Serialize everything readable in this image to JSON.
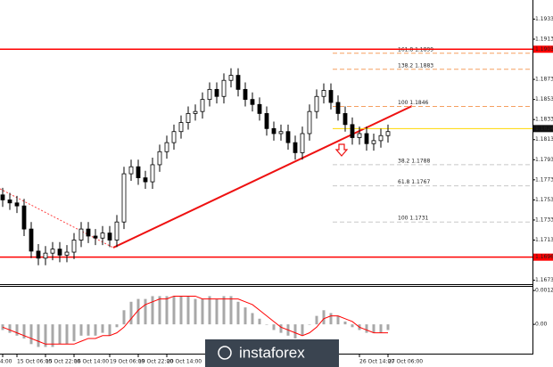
{
  "chart_data": {
    "type": "candlestick",
    "categories": [
      "4:00",
      null,
      "15 Oct 06:00",
      null,
      null,
      null,
      "15 Oct 22:00",
      null,
      null,
      null,
      "16 Oct 14:00",
      null,
      null,
      null,
      null,
      "19 Oct 06:00",
      null,
      null,
      null,
      "19 Oct 22:00",
      null,
      null,
      null,
      "20 Oct 14:00",
      null,
      null,
      null,
      null,
      null,
      null,
      null,
      null,
      null,
      null,
      null,
      null,
      null,
      null,
      null,
      null,
      null,
      null,
      null,
      null,
      null,
      null,
      null,
      null,
      null,
      null,
      "26 Oct 14:00",
      null,
      null,
      null,
      "27 Oct 06:00"
    ],
    "open": [
      1.1758,
      1.1753,
      1.175,
      1.1747,
      1.1724,
      1.1702,
      1.1695,
      1.17,
      1.1704,
      1.1698,
      1.1701,
      1.1713,
      1.1724,
      1.1717,
      1.1715,
      1.172,
      1.1713,
      1.1731,
      1.1779,
      1.1786,
      1.1775,
      1.1771,
      1.1788,
      1.1801,
      1.181,
      1.1821,
      1.183,
      1.1839,
      1.1841,
      1.1853,
      1.1863,
      1.1856,
      1.1872,
      1.1877,
      1.1863,
      1.1853,
      1.1848,
      1.1839,
      1.1824,
      1.1819,
      1.1821,
      1.181,
      1.18,
      1.1819,
      1.1841,
      1.1856,
      1.1862,
      1.185,
      1.1839,
      1.1828,
      1.1815,
      1.1819,
      1.1809,
      1.1812,
      1.1817
    ],
    "high": [
      1.1765,
      1.176,
      1.1757,
      1.1754,
      1.1731,
      1.1709,
      1.1707,
      1.1711,
      1.1711,
      1.1708,
      1.172,
      1.1731,
      1.1731,
      1.1724,
      1.1727,
      1.1727,
      1.1738,
      1.1786,
      1.1793,
      1.1793,
      1.1782,
      1.1795,
      1.1808,
      1.1817,
      1.1828,
      1.1837,
      1.1846,
      1.1848,
      1.186,
      1.187,
      1.187,
      1.1879,
      1.1884,
      1.1884,
      1.187,
      1.186,
      1.1855,
      1.1846,
      1.1831,
      1.1828,
      1.1828,
      1.1817,
      1.1826,
      1.1848,
      1.1863,
      1.1869,
      1.1869,
      1.1857,
      1.1846,
      1.1835,
      1.1826,
      1.1826,
      1.1819,
      1.1824,
      1.1828
    ],
    "low": [
      1.1746,
      1.1743,
      1.174,
      1.1717,
      1.1695,
      1.1688,
      1.1688,
      1.1693,
      1.1691,
      1.1691,
      1.1694,
      1.1706,
      1.171,
      1.1708,
      1.1708,
      1.1706,
      1.1706,
      1.1724,
      1.1772,
      1.1768,
      1.1764,
      1.1764,
      1.1781,
      1.1794,
      1.1803,
      1.1814,
      1.1823,
      1.1832,
      1.1834,
      1.1846,
      1.1849,
      1.1849,
      1.1865,
      1.1856,
      1.1846,
      1.1841,
      1.1832,
      1.1817,
      1.1812,
      1.1812,
      1.1803,
      1.1793,
      1.1793,
      1.1812,
      1.1834,
      1.1849,
      1.1843,
      1.1832,
      1.1821,
      1.1808,
      1.1808,
      1.1802,
      1.1802,
      1.1805,
      1.181
    ],
    "close": [
      1.1753,
      1.175,
      1.1747,
      1.1724,
      1.1702,
      1.1695,
      1.17,
      1.1704,
      1.1698,
      1.1701,
      1.1713,
      1.1724,
      1.1717,
      1.1715,
      1.172,
      1.1713,
      1.1731,
      1.1779,
      1.1786,
      1.1775,
      1.1771,
      1.1788,
      1.1801,
      1.181,
      1.1821,
      1.183,
      1.1839,
      1.1841,
      1.1853,
      1.1863,
      1.1856,
      1.1872,
      1.1877,
      1.1863,
      1.1853,
      1.1848,
      1.1839,
      1.1824,
      1.1819,
      1.1821,
      1.181,
      1.18,
      1.1819,
      1.1841,
      1.1856,
      1.1862,
      1.185,
      1.1839,
      1.1828,
      1.1815,
      1.1819,
      1.1809,
      1.1812,
      1.1817,
      1.1821
    ],
    "bull_color": "#ffffff",
    "bear_color": "#000000",
    "ylim": [
      1.167,
      1.1952
    ],
    "yticks": [
      1.1933,
      1.1913,
      1.1873,
      1.1853,
      1.1833,
      1.1813,
      1.1793,
      1.1773,
      1.1753,
      1.1733,
      1.1713,
      1.1673
    ],
    "levels": [
      {
        "value": 1.1903,
        "color": "#ff0000"
      },
      {
        "value": 1.1696,
        "color": "#ff0000"
      }
    ],
    "last_price": 1.1824,
    "last_price_color": "#ffd700",
    "fib_levels": [
      {
        "value": 1.1899,
        "label": "161.8 1.1899",
        "color": "#f5a060"
      },
      {
        "value": 1.1883,
        "label": "138.2 1.1883",
        "color": "#f5a060"
      },
      {
        "value": 1.1846,
        "label": "100 1.1846",
        "color": "#f5a060"
      },
      {
        "value": 1.1788,
        "label": "38.2 1.1788",
        "color": "#c8c8c8"
      },
      {
        "value": 1.1767,
        "label": "61.8 1.1767",
        "color": "#c8c8c8"
      },
      {
        "value": 1.1731,
        "label": "100 1.1731",
        "color": "#c8c8c8"
      }
    ],
    "macd": {
      "type": "histogram",
      "histogram": [
        -0.0002,
        -0.0003,
        -0.0004,
        -0.0005,
        -0.0007,
        -0.0008,
        -0.0008,
        -0.0008,
        -0.0007,
        -0.0007,
        -0.0006,
        -0.0004,
        -0.0004,
        -0.0004,
        -0.0003,
        -0.0004,
        -0.0001,
        0.0005,
        0.0008,
        0.0009,
        0.0009,
        0.001,
        0.001,
        0.001,
        0.001,
        0.001,
        0.001,
        0.0009,
        0.0009,
        0.001,
        0.0009,
        0.001,
        0.001,
        0.0008,
        0.0006,
        0.0004,
        0.0002,
        0,
        -0.0002,
        -0.0003,
        -0.0004,
        -0.0005,
        -0.0004,
        0,
        0.0003,
        0.0005,
        0.0004,
        0.0003,
        0.0001,
        -0.0001,
        -0.0002,
        -0.0003,
        -0.0003,
        -0.0003,
        -0.0002
      ],
      "signal": [
        -0.0001,
        -0.0002,
        -0.0003,
        -0.0004,
        -0.0005,
        -0.0006,
        -0.0007,
        -0.0007,
        -0.0007,
        -0.0007,
        -0.0007,
        -0.0006,
        -0.0005,
        -0.0005,
        -0.0004,
        -0.0004,
        -0.0003,
        -0.0001,
        0.0002,
        0.0005,
        0.0007,
        0.0008,
        0.0009,
        0.0009,
        0.001,
        0.001,
        0.001,
        0.001,
        0.0009,
        0.0009,
        0.0009,
        0.0009,
        0.0009,
        0.0009,
        0.0008,
        0.0007,
        0.0005,
        0.0003,
        0.0001,
        -0.0001,
        -0.0002,
        -0.0003,
        -0.0004,
        -0.0003,
        -0.0001,
        0.0002,
        0.0003,
        0.0003,
        0.0002,
        0.0001,
        -0.0001,
        -0.0002,
        -0.0003,
        -0.0003,
        -0.0003
      ],
      "bar_color": "#a8a8a8",
      "signal_color": "#ff0000",
      "ylim": [
        -0.00088,
        0.00133
      ],
      "yticks": [
        0.0012,
        {
          "value": 0,
          "label": "0.00"
        }
      ]
    }
  },
  "watermark": "instaforex"
}
